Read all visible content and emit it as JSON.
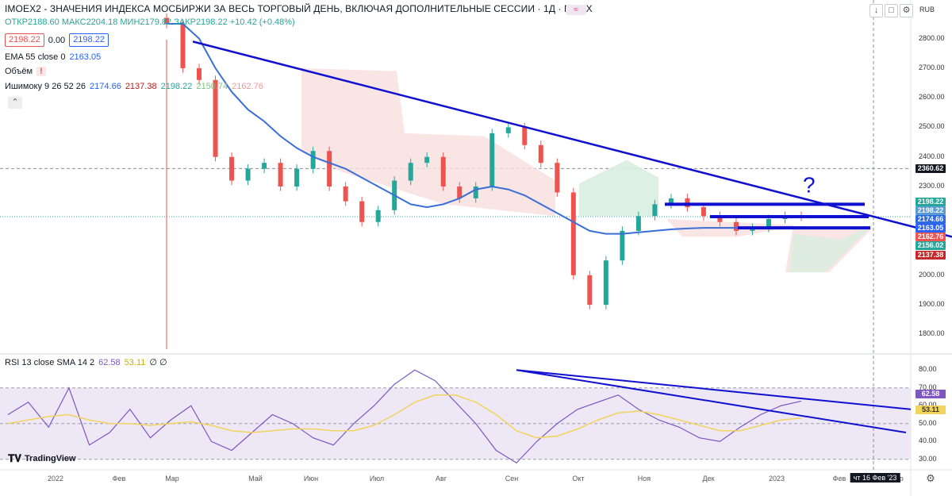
{
  "header": {
    "title": "IMOEX2 - ЗНАЧЕНИЯ ИНДЕКСА МОСБИРЖИ ЗА ВЕСЬ ТОРГОВЫЙ ДЕНЬ, ВКЛЮЧАЯ ДОПОЛНИТЕЛЬНЫЕ СЕССИИ · 1Д · MOEX",
    "ohlc": "ОТКР2188.60 МАКС2204.18 МИН2179.82 ЗАКР2198.22 +10.42 (+0.48%)",
    "bid": "2198.22",
    "spread": "0.00",
    "ask": "2198.22",
    "currency": "RUB"
  },
  "indicators": {
    "ema": {
      "label": "EMA 55 close 0",
      "value": "2163.05"
    },
    "volume": {
      "label": "Объём",
      "alert": "!"
    },
    "ichimoku": {
      "label": "Ишимоку 9 26 52 26",
      "v1": "2174.66",
      "v2": "2137.38",
      "v3": "2198.22",
      "v4": "2150.74",
      "v5": "2162.76"
    },
    "rsi": {
      "label": "RSI 13 close SMA 14 2",
      "v1": "62.58",
      "v2": "53.11",
      "v3": "∅ ∅"
    }
  },
  "logo": "TradingView",
  "annotation": "?",
  "colors": {
    "up": "#26a69a",
    "down": "#ef5350",
    "ema": "#3a6fd8",
    "trend": "#1010d0",
    "cloud_up": "#d8efe0",
    "cloud_down": "#f9dede",
    "rsi": "#7e57c2",
    "rsi_sma": "#f2d45c"
  },
  "chart_data": [
    {
      "type": "line",
      "title": "IMOEX2 · 1Д",
      "ylim": [
        1750,
        2850
      ],
      "y_ticks": [
        "2800.00",
        "2700.00",
        "2600.00",
        "2500.00",
        "2400.00",
        "2300.00",
        "2200.00",
        "2100.00",
        "2000.00",
        "1900.00",
        "1800.00"
      ],
      "price_tags": [
        {
          "value": "2360.62",
          "bg": "#131722"
        },
        {
          "value": "2198.22",
          "bg": "#26a69a"
        },
        {
          "value": "2198.22",
          "bg": "#5b9bd5"
        },
        {
          "value": "2174.66",
          "bg": "#2d6ae0"
        },
        {
          "value": "2163.05",
          "bg": "#2962ff"
        },
        {
          "value": "2162.76",
          "bg": "#ef5350"
        },
        {
          "value": "2156.02",
          "bg": "#26a69a"
        },
        {
          "value": "2137.38",
          "bg": "#c62828"
        }
      ],
      "x_ticks": [
        "2022",
        "Фев",
        "Мар",
        "Май",
        "Июн",
        "Июл",
        "Авг",
        "Сен",
        "Окт",
        "Ноя",
        "Дек",
        "2023",
        "Фев",
        "Мар"
      ],
      "crosshair_date": "чт 16 Фев '23",
      "series": [
        {
          "name": "Close",
          "values": [
            2850,
            2700,
            2660,
            2400,
            2320,
            2360,
            2380,
            2300,
            2360,
            2420,
            2300,
            2250,
            2180,
            2220,
            2320,
            2380,
            2400,
            2300,
            2260,
            2300,
            2480,
            2500,
            2440,
            2380,
            2280,
            2000,
            1900,
            2050,
            2150,
            2200,
            2240,
            2260,
            2230,
            2200,
            2180,
            2150,
            2160,
            2190,
            2200,
            2198
          ]
        },
        {
          "name": "EMA 55",
          "values": [
            3000,
            2900,
            2800,
            2700,
            2620,
            2560,
            2520,
            2470,
            2430,
            2400,
            2380,
            2360,
            2330,
            2300,
            2270,
            2240,
            2230,
            2240,
            2260,
            2290,
            2300,
            2290,
            2270,
            2240,
            2210,
            2180,
            2150,
            2140,
            2140,
            2145,
            2150,
            2155,
            2158,
            2160,
            2160,
            2160,
            2161,
            2162,
            2163,
            2163
          ]
        }
      ]
    },
    {
      "type": "line",
      "title": "RSI 13 close SMA 14 2",
      "ylim": [
        25,
        85
      ],
      "y_ticks": [
        "80.00",
        "70.00",
        "60.00",
        "50.00",
        "40.00",
        "30.00"
      ],
      "band": [
        30,
        70
      ],
      "value_tags": [
        {
          "value": "62.58",
          "bg": "#7e57c2"
        },
        {
          "value": "53.11",
          "bg": "#f2d45c"
        }
      ],
      "series": [
        {
          "name": "RSI",
          "values": [
            55,
            62,
            48,
            70,
            38,
            45,
            58,
            42,
            52,
            60,
            40,
            35,
            45,
            55,
            50,
            42,
            38,
            50,
            60,
            72,
            80,
            74,
            62,
            50,
            35,
            28,
            40,
            50,
            58,
            62,
            66,
            58,
            52,
            48,
            42,
            40,
            48,
            55,
            60,
            62.58
          ]
        },
        {
          "name": "SMA",
          "values": [
            50,
            52,
            54,
            55,
            52,
            50,
            50,
            49,
            50,
            51,
            49,
            46,
            45,
            46,
            47,
            47,
            46,
            46,
            49,
            55,
            62,
            66,
            66,
            62,
            55,
            46,
            42,
            43,
            47,
            52,
            56,
            57,
            55,
            52,
            49,
            46,
            46,
            49,
            52,
            53.11
          ]
        }
      ]
    }
  ]
}
